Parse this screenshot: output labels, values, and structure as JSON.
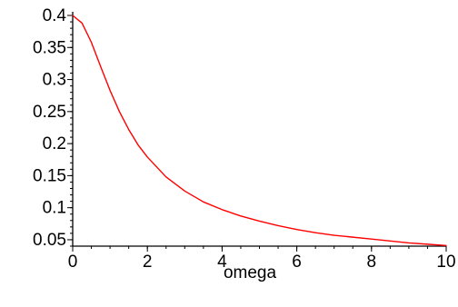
{
  "chart_data": {
    "type": "line",
    "title": "",
    "xlabel": "omega",
    "ylabel": "",
    "xlim": [
      0,
      10
    ],
    "ylim": [
      0.04,
      0.4
    ],
    "grid": false,
    "x_ticks": [
      0,
      2,
      4,
      6,
      8,
      10
    ],
    "x_tick_labels": [
      "0",
      "2",
      "4",
      "6",
      "8",
      "10"
    ],
    "y_ticks": [
      0.05,
      0.1,
      0.15,
      0.2,
      0.25,
      0.3,
      0.35,
      0.4
    ],
    "y_tick_labels": [
      "0.05",
      "0.1",
      "0.15",
      "0.2",
      "0.25",
      "0.3",
      "0.35",
      "0.4"
    ],
    "series": [
      {
        "color": "#ff0000",
        "x": [
          0,
          0.25,
          0.5,
          0.75,
          1,
          1.25,
          1.5,
          1.75,
          2,
          2.5,
          3,
          3.5,
          4,
          4.5,
          5,
          5.5,
          6,
          6.5,
          7,
          7.5,
          8,
          8.5,
          9,
          9.5,
          10
        ],
        "y": [
          0.4,
          0.388,
          0.358,
          0.32,
          0.283,
          0.25,
          0.222,
          0.198,
          0.179,
          0.148,
          0.126,
          0.109,
          0.097,
          0.087,
          0.079,
          0.072,
          0.066,
          0.061,
          0.057,
          0.054,
          0.051,
          0.048,
          0.045,
          0.043,
          0.041
        ]
      }
    ]
  }
}
